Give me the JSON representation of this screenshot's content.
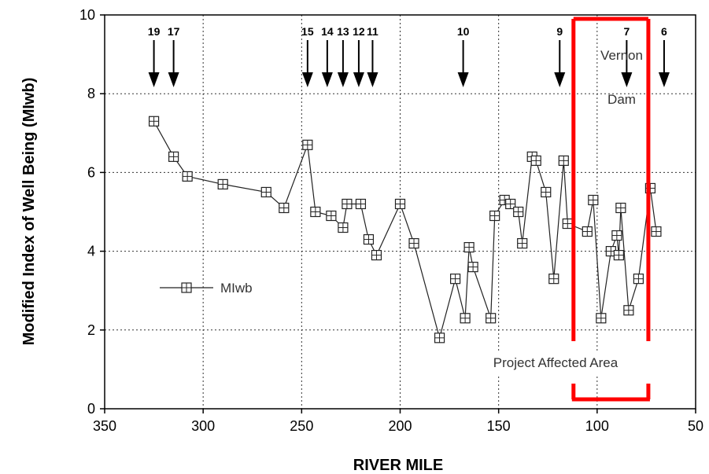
{
  "chart_data": {
    "type": "line",
    "xlabel": "RIVER MILE",
    "ylabel": "Modified Index of Well Being (MIwb)",
    "xlim": [
      350,
      50
    ],
    "ylim": [
      0,
      10
    ],
    "x_ticks": [
      "350",
      "300",
      "250",
      "200",
      "150",
      "100",
      "50"
    ],
    "y_ticks": [
      "0",
      "2",
      "4",
      "6",
      "8",
      "10"
    ],
    "grid": true,
    "legend": {
      "placement": "center-left",
      "label": "MIwb"
    },
    "series": [
      {
        "name": "MIwb",
        "x": [
          325,
          315,
          308,
          290,
          268,
          259,
          247,
          243,
          235,
          229,
          227,
          220,
          216,
          212,
          200,
          193,
          180,
          172,
          167,
          165,
          163,
          154,
          152,
          147,
          144,
          140,
          138,
          133,
          131,
          126,
          122,
          117,
          115,
          105,
          102,
          98,
          93,
          90,
          89,
          88,
          84,
          79,
          73,
          70
        ],
        "y": [
          7.3,
          6.4,
          5.9,
          5.7,
          5.5,
          5.1,
          6.7,
          5.0,
          4.9,
          4.6,
          5.2,
          5.2,
          4.3,
          3.9,
          5.2,
          4.2,
          1.8,
          3.3,
          2.3,
          4.1,
          3.6,
          2.3,
          4.9,
          5.3,
          5.2,
          5.0,
          4.2,
          6.4,
          6.3,
          5.5,
          3.3,
          6.3,
          4.7,
          4.5,
          5.3,
          2.3,
          4.0,
          4.4,
          3.9,
          5.1,
          2.5,
          3.3,
          5.6,
          4.5
        ]
      }
    ],
    "dams": [
      {
        "label": "19",
        "x": 325
      },
      {
        "label": "17",
        "x": 315
      },
      {
        "label": "15",
        "x": 247
      },
      {
        "label": "14",
        "x": 237
      },
      {
        "label": "13",
        "x": 229
      },
      {
        "label": "12",
        "x": 221
      },
      {
        "label": "11",
        "x": 214
      },
      {
        "label": "10",
        "x": 168
      },
      {
        "label": "9",
        "x": 119
      },
      {
        "label": "7",
        "x": 85
      },
      {
        "label": "6",
        "x": 66
      }
    ],
    "annotations": {
      "dam_name_line1": "Vernon",
      "dam_name_line2": "Dam",
      "affected_area": "Project Affected Area"
    },
    "highlight": {
      "x_start": 112,
      "x_end": 74,
      "color": "#ff0000"
    }
  }
}
